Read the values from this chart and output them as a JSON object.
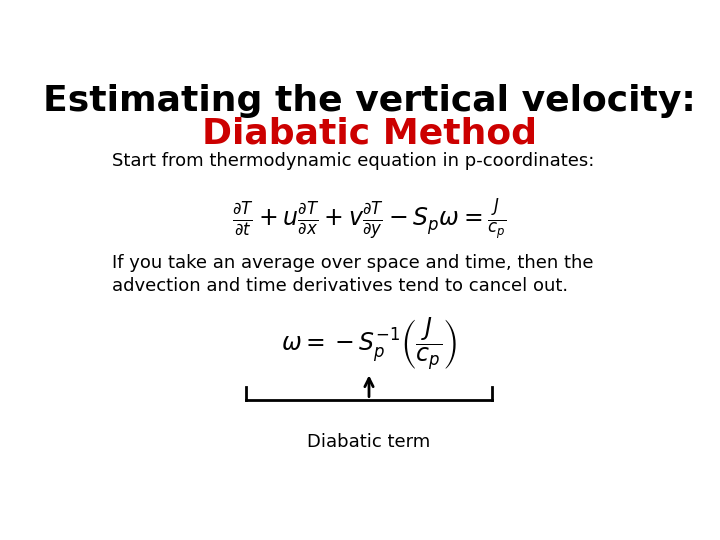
{
  "background_color": "#ffffff",
  "title_line1": "Estimating the vertical velocity:",
  "title_line2": "Diabatic Method",
  "title_line1_color": "#000000",
  "title_line2_color": "#cc0000",
  "title_fontsize": 26,
  "subtitle_text": "Start from thermodynamic equation in p-coordinates:",
  "subtitle_fontsize": 13,
  "eq1_fontsize": 17,
  "body_text_line1": "If you take an average over space and time, then the",
  "body_text_line2": "advection and time derivatives tend to cancel out.",
  "body_fontsize": 13,
  "eq2_fontsize": 17,
  "label_text": "Diabatic term",
  "label_fontsize": 13
}
